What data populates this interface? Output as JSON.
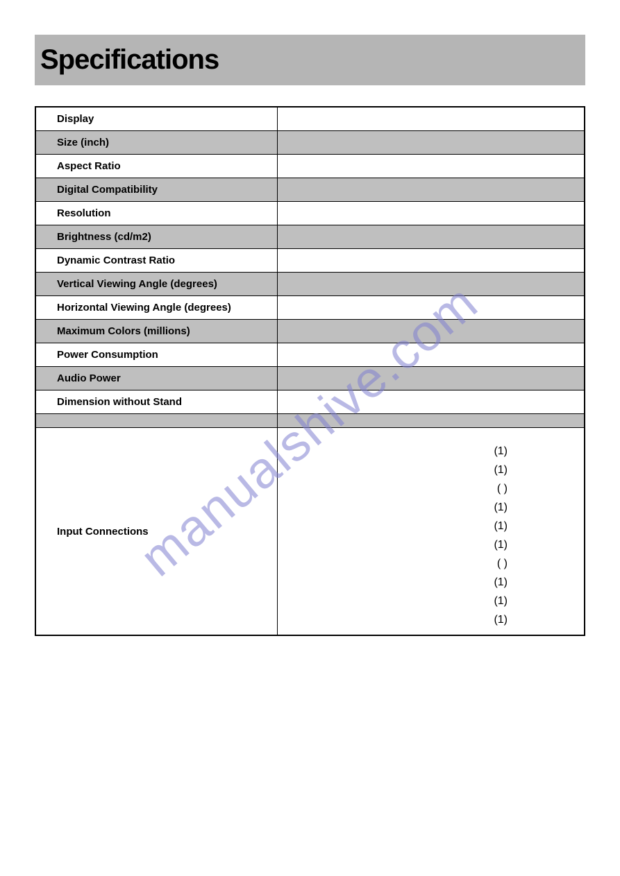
{
  "page": {
    "title": "Specifications",
    "colors": {
      "title_bar_bg": "#b5b5b5",
      "shaded_row_bg": "#bfbfbf",
      "white_row_bg": "#ffffff",
      "border": "#000000",
      "text": "#000000",
      "watermark": "#8080d0"
    },
    "typography": {
      "title_fontsize": 40,
      "title_weight": 900,
      "row_fontsize": 15,
      "row_weight": "bold"
    }
  },
  "table": {
    "type": "table",
    "columns": [
      "label",
      "value"
    ],
    "label_width_pct": 44,
    "rows": [
      {
        "label": "Display",
        "value": "",
        "shaded": false
      },
      {
        "label": "Size (inch)",
        "value": "",
        "shaded": true
      },
      {
        "label": "Aspect Ratio",
        "value": "",
        "shaded": false
      },
      {
        "label": "Digital Compatibility",
        "value": "",
        "shaded": true
      },
      {
        "label": "Resolution",
        "value": "",
        "shaded": false
      },
      {
        "label": "Brightness (cd/m2)",
        "value": "",
        "shaded": true
      },
      {
        "label": "Dynamic Contrast Ratio",
        "value": "",
        "shaded": false
      },
      {
        "label": "Vertical Viewing Angle (degrees)",
        "value": "",
        "shaded": true
      },
      {
        "label": "Horizontal Viewing Angle (degrees)",
        "value": "",
        "shaded": false
      },
      {
        "label": "Maximum Colors (millions)",
        "value": "",
        "shaded": true
      },
      {
        "label": "Power Consumption",
        "value": "",
        "shaded": false
      },
      {
        "label": "Audio Power",
        "value": "",
        "shaded": true
      },
      {
        "label": "Dimension without Stand",
        "value": "",
        "shaded": false
      }
    ],
    "input_connections": {
      "label": "Input Connections",
      "values": [
        "(1)",
        "(1)",
        "(  )",
        "(1)",
        "(1)",
        "(1)",
        "(  )",
        "(1)",
        "(1)",
        "(1)"
      ]
    }
  },
  "watermark": {
    "text": "manualshive.com",
    "rotation_deg": -40,
    "opacity": 0.55
  }
}
